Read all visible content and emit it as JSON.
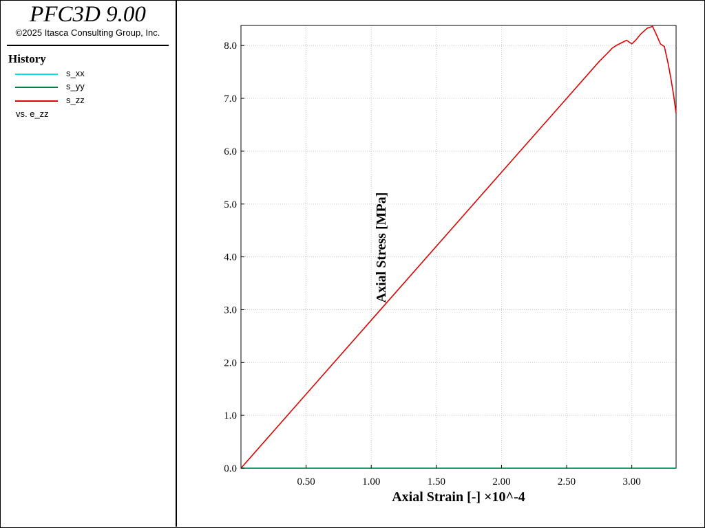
{
  "app": {
    "title": "PFC3D 9.00",
    "copyright": "©2025 Itasca Consulting Group, Inc."
  },
  "legend": {
    "heading": "History",
    "items": [
      {
        "label": "s_xx",
        "color": "#00e0e0"
      },
      {
        "label": "s_yy",
        "color": "#008040"
      },
      {
        "label": "s_zz",
        "color": "#e00000"
      }
    ],
    "vs_label": "vs. e_zz"
  },
  "chart_data": {
    "type": "line",
    "xlabel": "Axial Strain [-] ×10^-4",
    "ylabel": "Axial Stress [MPa]",
    "xlim": [
      0.0,
      3.34
    ],
    "ylim": [
      0.0,
      8.38
    ],
    "xticks": [
      "0.50",
      "1.00",
      "1.50",
      "2.00",
      "2.50",
      "3.00"
    ],
    "xtick_values": [
      0.5,
      1.0,
      1.5,
      2.0,
      2.5,
      3.0
    ],
    "yticks": [
      "0.0",
      "1.0",
      "2.0",
      "3.0",
      "4.0",
      "5.0",
      "6.0",
      "7.0",
      "8.0"
    ],
    "ytick_values": [
      0,
      1,
      2,
      3,
      4,
      5,
      6,
      7,
      8
    ],
    "grid": true,
    "series": [
      {
        "name": "s_xx",
        "color": "#00e0e0",
        "x": [
          0.0,
          3.34
        ],
        "y": [
          0.0,
          0.0
        ]
      },
      {
        "name": "s_yy",
        "color": "#008040",
        "x": [
          0.0,
          3.34
        ],
        "y": [
          0.0,
          0.0
        ]
      },
      {
        "name": "s_zz",
        "color": "#e00000",
        "x": [
          0.0,
          0.5,
          1.0,
          1.5,
          2.0,
          2.5,
          2.75,
          2.8,
          2.85,
          2.88,
          2.92,
          2.96,
          3.0,
          3.03,
          3.07,
          3.12,
          3.16,
          3.19,
          3.22,
          3.25,
          3.28,
          3.3,
          3.32,
          3.34
        ],
        "y": [
          0.0,
          1.4,
          2.8,
          4.2,
          5.6,
          7.0,
          7.7,
          7.82,
          7.95,
          8.0,
          8.05,
          8.1,
          8.03,
          8.1,
          8.22,
          8.33,
          8.36,
          8.2,
          8.03,
          7.98,
          7.65,
          7.38,
          7.08,
          6.72
        ]
      }
    ]
  }
}
